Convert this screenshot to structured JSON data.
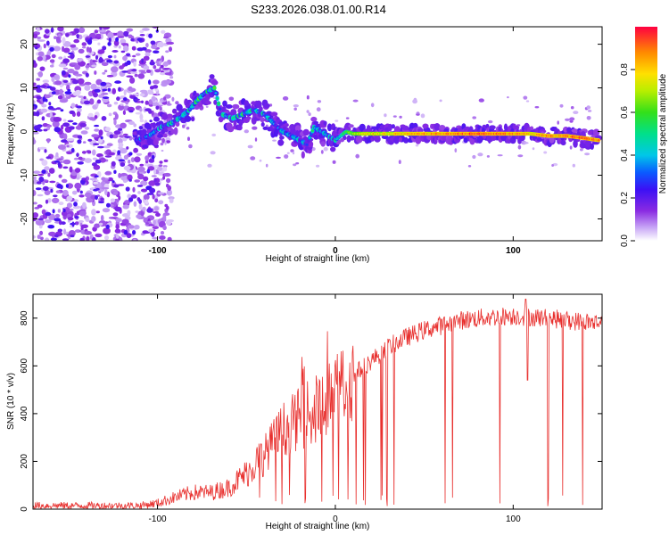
{
  "figure": {
    "title": "S233.2026.038.01.00.R14"
  },
  "chart_data": [
    {
      "type": "heatmap",
      "title": "S233.2026.038.01.00.R14",
      "xlabel": "Height of straight line (km)",
      "ylabel": "Frequency (Hz)",
      "xlim": [
        -170,
        150
      ],
      "ylim": [
        -25,
        24
      ],
      "x_ticks": [
        -100,
        0,
        100
      ],
      "y_ticks": [
        -20,
        -10,
        0,
        10,
        20
      ],
      "colorbar": {
        "label": "Normalized spectral amplitude",
        "range": [
          0.0,
          1.0
        ],
        "ticks": [
          "0.0",
          "0.2",
          "0.4",
          "0.6",
          "0.8"
        ],
        "colormap": "rainbow (white-violet-blue-cyan-green-yellow-red)"
      },
      "ridge": {
        "x": [
          -112,
          -105,
          -98,
          -92,
          -88,
          -82,
          -78,
          -73,
          -68,
          -64,
          -58,
          -52,
          -46,
          -40,
          -35,
          -30,
          -25,
          -20,
          -16,
          -12,
          -8,
          -4,
          0,
          3,
          6,
          10,
          20,
          40,
          60,
          80,
          100,
          110,
          120,
          130,
          140,
          148
        ],
        "y": [
          -2,
          -1,
          1,
          2,
          3,
          5,
          7,
          9,
          10,
          4,
          3,
          4,
          5,
          4,
          2,
          0,
          -1,
          -2,
          -3,
          1,
          0,
          -1,
          -2,
          -1,
          0,
          -0.5,
          -0.5,
          -0.5,
          -0.5,
          -0.5,
          -0.5,
          -0.5,
          -1,
          -1,
          -1.5,
          -2
        ],
        "amplitude": [
          0.3,
          0.35,
          0.4,
          0.4,
          0.45,
          0.5,
          0.5,
          0.45,
          0.55,
          0.4,
          0.45,
          0.5,
          0.45,
          0.4,
          0.35,
          0.35,
          0.35,
          0.35,
          0.35,
          0.45,
          0.45,
          0.4,
          0.4,
          0.5,
          0.6,
          0.7,
          0.8,
          0.85,
          0.9,
          0.95,
          0.9,
          0.85,
          0.9,
          0.9,
          0.95,
          0.9
        ]
      },
      "noise_region_x": [
        -170,
        -100
      ]
    },
    {
      "type": "line",
      "xlabel": "Height of straight line (km)",
      "ylabel": "SNR (10 * v/v)",
      "xlim": [
        -170,
        150
      ],
      "ylim": [
        0,
        900
      ],
      "x_ticks": [
        -100,
        0,
        100
      ],
      "y_ticks": [
        0,
        200,
        400,
        600,
        800
      ],
      "color": "#e8302e",
      "envelope": {
        "x": [
          -170,
          -140,
          -110,
          -100,
          -90,
          -80,
          -70,
          -60,
          -50,
          -40,
          -30,
          -20,
          -10,
          0,
          10,
          20,
          30,
          40,
          50,
          60,
          70,
          80,
          90,
          100,
          110,
          120,
          130,
          140,
          150
        ],
        "y": [
          15,
          15,
          15,
          25,
          50,
          70,
          70,
          90,
          150,
          230,
          330,
          380,
          420,
          480,
          560,
          620,
          680,
          720,
          750,
          770,
          790,
          800,
          805,
          810,
          805,
          800,
          790,
          785,
          780
        ]
      }
    }
  ]
}
